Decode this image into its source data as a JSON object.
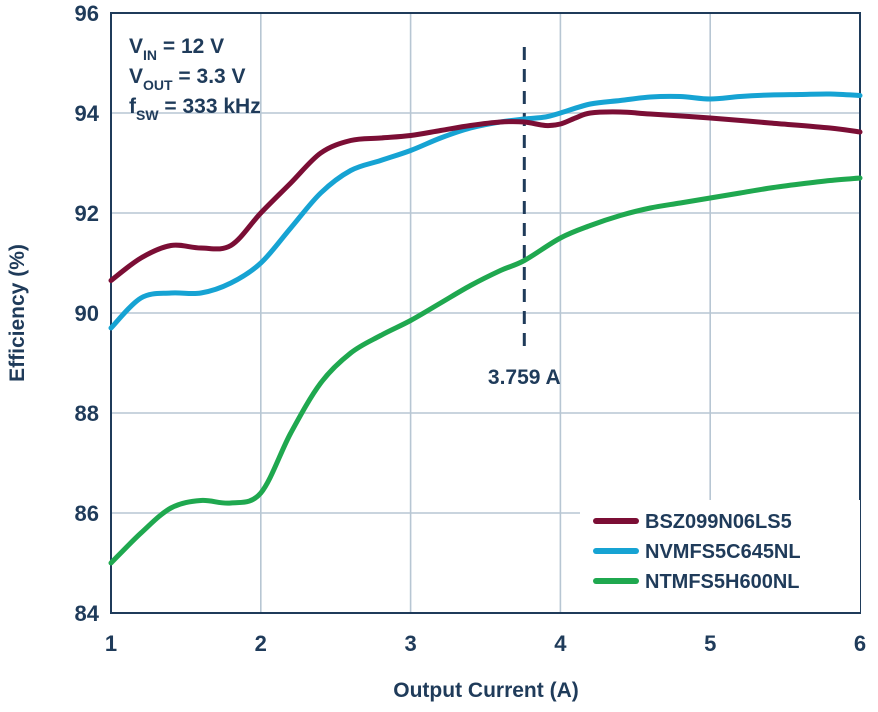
{
  "chart_data": {
    "type": "line",
    "xlabel": "Output Current (A)",
    "ylabel": "Efficiency (%)",
    "xlim": [
      1,
      6
    ],
    "ylim": [
      84,
      96
    ],
    "xticks": [
      "1",
      "2",
      "3",
      "4",
      "5",
      "6"
    ],
    "yticks": [
      "84",
      "86",
      "88",
      "90",
      "92",
      "94",
      "96"
    ],
    "grid": true,
    "legend_position": "bottom-right",
    "conditions": [
      {
        "main": "V",
        "sub": "IN",
        "rest": " = 12 V"
      },
      {
        "main": "V",
        "sub": "OUT",
        "rest": " = 3.3 V"
      },
      {
        "main": "f",
        "sub": "SW",
        "rest": " = 333 kHz"
      }
    ],
    "marker": {
      "x": 3.759,
      "label": "3.759 A"
    },
    "series": [
      {
        "name": "BSZ099N06LS5",
        "color": "#7b0e35",
        "x": [
          1.0,
          1.2,
          1.4,
          1.6,
          1.8,
          2.0,
          2.2,
          2.4,
          2.6,
          2.8,
          3.0,
          3.2,
          3.4,
          3.6,
          3.759,
          3.9,
          4.0,
          4.1,
          4.2,
          4.4,
          4.6,
          5.0,
          5.4,
          5.8,
          6.0
        ],
        "y": [
          90.65,
          91.1,
          91.35,
          91.3,
          91.35,
          92.0,
          92.6,
          93.2,
          93.45,
          93.5,
          93.55,
          93.65,
          93.75,
          93.82,
          93.82,
          93.75,
          93.78,
          93.9,
          94.0,
          94.02,
          93.98,
          93.9,
          93.8,
          93.7,
          93.62
        ]
      },
      {
        "name": "NVMFS5C645NL",
        "color": "#16a3d3",
        "x": [
          1.0,
          1.2,
          1.4,
          1.6,
          1.8,
          2.0,
          2.2,
          2.4,
          2.6,
          2.8,
          3.0,
          3.2,
          3.4,
          3.6,
          3.759,
          3.9,
          4.0,
          4.2,
          4.4,
          4.6,
          4.8,
          5.0,
          5.2,
          5.4,
          5.6,
          5.8,
          6.0
        ],
        "y": [
          89.7,
          90.3,
          90.4,
          90.4,
          90.6,
          91.0,
          91.7,
          92.4,
          92.85,
          93.05,
          93.25,
          93.5,
          93.7,
          93.82,
          93.88,
          93.92,
          94.0,
          94.18,
          94.25,
          94.32,
          94.33,
          94.28,
          94.33,
          94.36,
          94.37,
          94.38,
          94.35
        ]
      },
      {
        "name": "NTMFS5H600NL",
        "color": "#1fa84f",
        "x": [
          1.0,
          1.2,
          1.4,
          1.6,
          1.8,
          2.0,
          2.2,
          2.4,
          2.6,
          2.8,
          3.0,
          3.2,
          3.4,
          3.6,
          3.759,
          4.0,
          4.2,
          4.4,
          4.6,
          4.8,
          5.0,
          5.2,
          5.4,
          5.6,
          5.8,
          6.0
        ],
        "y": [
          85.0,
          85.6,
          86.1,
          86.25,
          86.2,
          86.4,
          87.6,
          88.6,
          89.2,
          89.55,
          89.85,
          90.2,
          90.55,
          90.85,
          91.05,
          91.5,
          91.75,
          91.95,
          92.1,
          92.2,
          92.3,
          92.4,
          92.5,
          92.58,
          92.65,
          92.7
        ]
      }
    ]
  }
}
